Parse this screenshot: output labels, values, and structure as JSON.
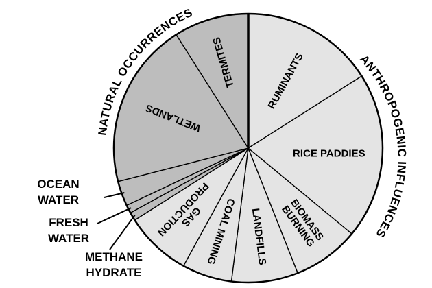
{
  "chart_data": {
    "type": "pie",
    "title": "",
    "groups": [
      {
        "name": "NATURAL OCCURRENCES",
        "color": "#bdbdbd"
      },
      {
        "name": "ANTHROPOGENIC INFLUENCES",
        "color": "#e4e4e4"
      }
    ],
    "slices": [
      {
        "label": "RUMINANTS",
        "value": 16,
        "group": "ANTHROPOGENIC INFLUENCES"
      },
      {
        "label": "RICE PADDIES",
        "value": 20,
        "group": "ANTHROPOGENIC INFLUENCES"
      },
      {
        "label": "BIOMASS BURNING",
        "value": 8,
        "group": "ANTHROPOGENIC INFLUENCES"
      },
      {
        "label": "LANDFILLS",
        "value": 8,
        "group": "ANTHROPOGENIC INFLUENCES"
      },
      {
        "label": "COAL MINING",
        "value": 6,
        "group": "ANTHROPOGENIC INFLUENCES"
      },
      {
        "label": "GAS PRODUCTION",
        "value": 8,
        "group": "ANTHROPOGENIC INFLUENCES"
      },
      {
        "label": "METHANE HYDRATE",
        "value": 1,
        "group": "NATURAL OCCURRENCES"
      },
      {
        "label": "FRESH WATER",
        "value": 1,
        "group": "NATURAL OCCURRENCES"
      },
      {
        "label": "OCEAN WATER",
        "value": 3,
        "group": "NATURAL OCCURRENCES"
      },
      {
        "label": "WETLANDS",
        "value": 20,
        "group": "NATURAL OCCURRENCES"
      },
      {
        "label": "TERMITES",
        "value": 9,
        "group": "NATURAL OCCURRENCES"
      }
    ],
    "external_labels": {
      "ocean": [
        "OCEAN",
        "WATER"
      ],
      "fresh": [
        "FRESH",
        "WATER"
      ],
      "methane": [
        "METHANE",
        "HYDRATE"
      ]
    },
    "inside_labels": {
      "ruminants": [
        "RUMINANTS"
      ],
      "rice": [
        "RICE PADDIES"
      ],
      "biomass": [
        "BIOMASS",
        "BURNING"
      ],
      "landfills": [
        "LANDFILLS"
      ],
      "coal": [
        "COAL MINING"
      ],
      "gas": [
        "GAS",
        "PRODUCTION"
      ],
      "wetlands": [
        "WETLANDS"
      ],
      "termites": [
        "TERMITES"
      ]
    }
  }
}
